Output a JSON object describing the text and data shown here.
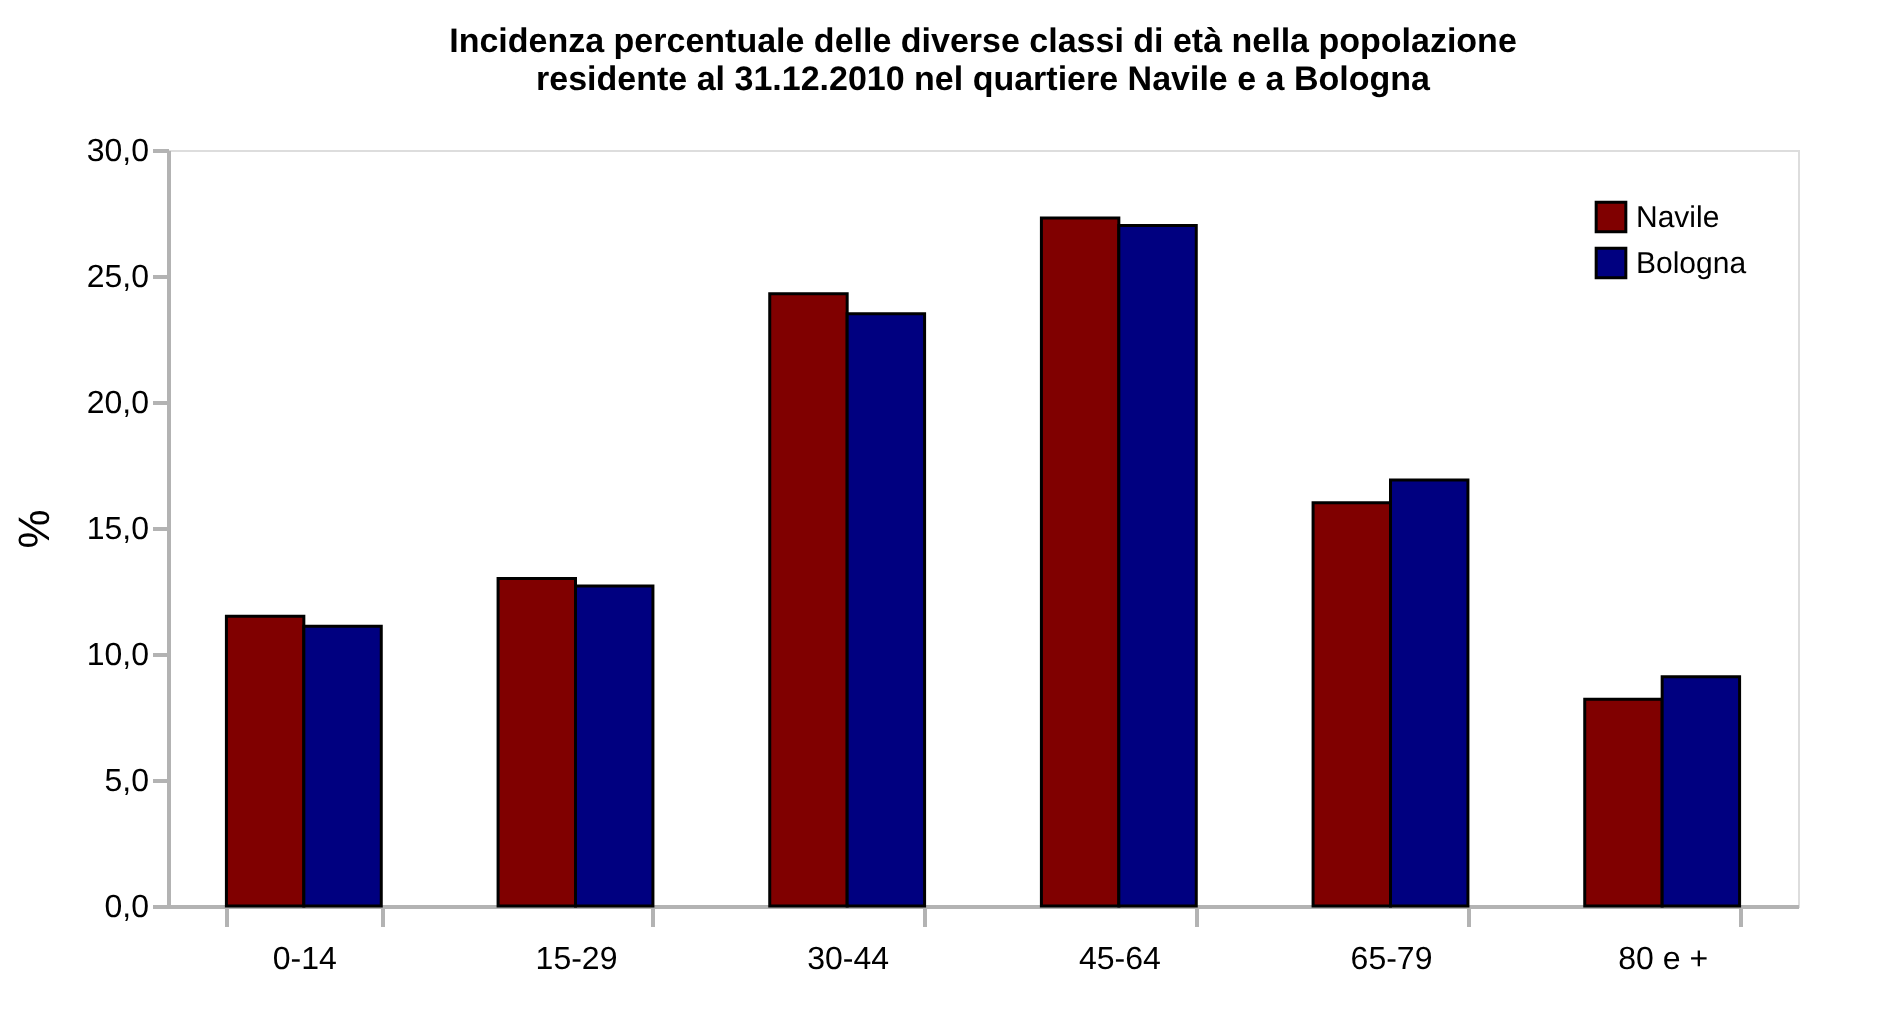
{
  "chart_data": {
    "type": "bar",
    "title": "Incidenza percentuale delle diverse classi di età nella popolazione residente al 31.12.2010 nel quartiere Navile e a Bologna",
    "ylabel": "%",
    "categories": [
      "0-14",
      "15-29",
      "30-44",
      "45-64",
      "65-79",
      "80 e +"
    ],
    "series": [
      {
        "name": "Navile",
        "color": "#800000",
        "values": [
          11.5,
          13.0,
          24.3,
          27.3,
          16.0,
          8.2
        ]
      },
      {
        "name": "Bologna",
        "color": "#000080",
        "values": [
          11.1,
          12.7,
          23.5,
          27.0,
          16.9,
          9.1
        ]
      }
    ],
    "ylim": [
      0,
      30
    ],
    "yticks": [
      {
        "value": 0,
        "label": "0,0"
      },
      {
        "value": 5,
        "label": "5,0"
      },
      {
        "value": 10,
        "label": "10,0"
      },
      {
        "value": 15,
        "label": "15,0"
      },
      {
        "value": 20,
        "label": "20,0"
      },
      {
        "value": 25,
        "label": "25,0"
      },
      {
        "value": 30,
        "label": "30,0"
      }
    ],
    "grid": false,
    "legend": "top right"
  }
}
